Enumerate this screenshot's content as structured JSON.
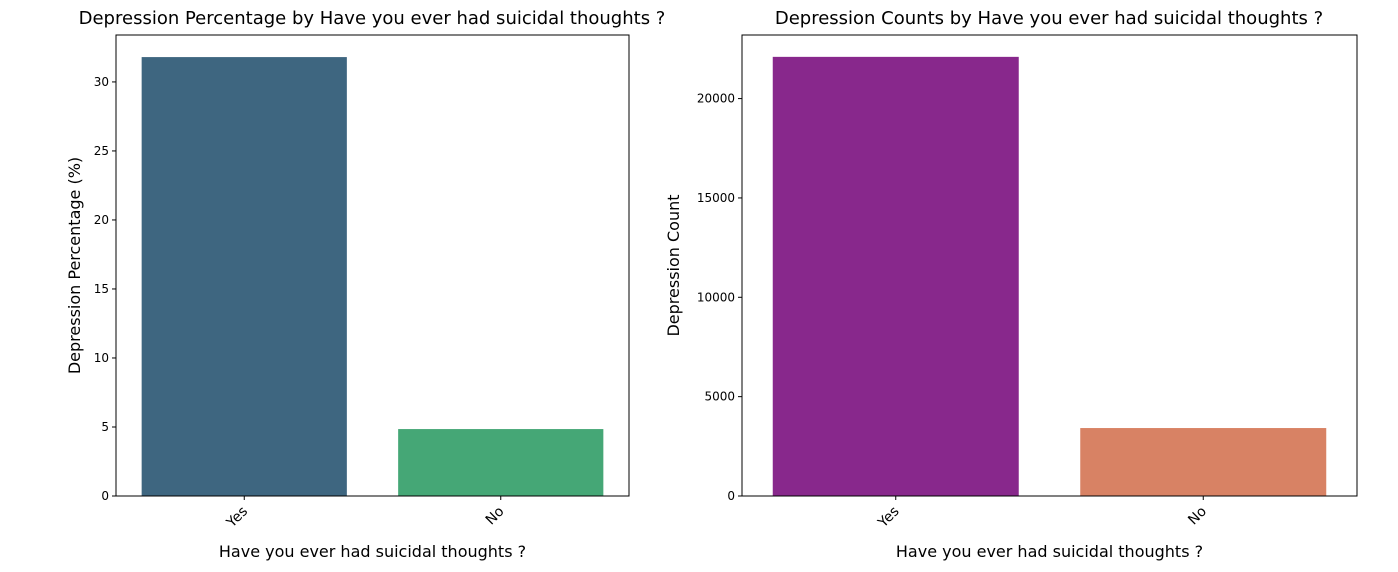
{
  "chart_data": [
    {
      "type": "bar",
      "title": "Depression Percentage by Have you ever had suicidal thoughts ?",
      "xlabel": "Have you ever had suicidal thoughts ?",
      "ylabel": "Depression Percentage (%)",
      "categories": [
        "Yes",
        "No"
      ],
      "values": [
        31.8,
        4.85
      ],
      "colors": [
        "#3e6680",
        "#45a776"
      ],
      "ylim": [
        0,
        33.4
      ],
      "yticks": [
        0,
        5,
        10,
        15,
        20,
        25,
        30
      ],
      "grid": false
    },
    {
      "type": "bar",
      "title": "Depression Counts by Have you ever had suicidal thoughts ?",
      "xlabel": "Have you ever had suicidal thoughts ?",
      "ylabel": "Depression Count",
      "categories": [
        "Yes",
        "No"
      ],
      "values": [
        22100,
        3420
      ],
      "colors": [
        "#88288c",
        "#d88264"
      ],
      "ylim": [
        0,
        23200
      ],
      "yticks": [
        0,
        5000,
        10000,
        15000,
        20000
      ],
      "grid": false
    }
  ]
}
